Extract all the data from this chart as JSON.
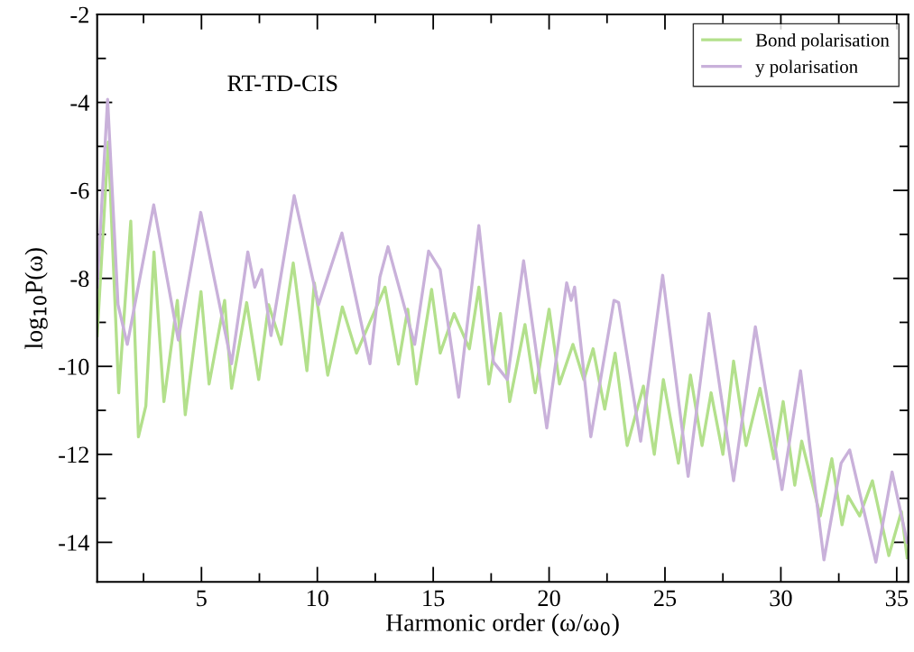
{
  "chart_data": {
    "type": "line",
    "xlabel": "Harmonic order (ω/ω$_{0}$)",
    "ylabel": "log$_{10}$P(ω)",
    "annotations": [
      "RT-TD-CIS"
    ],
    "xlim": [
      0.5,
      35.5
    ],
    "ylim": [
      -14.9,
      -2
    ],
    "xticks": [
      {
        "value": 2.5,
        "label": null
      },
      5,
      {
        "value": 7.5,
        "label": null
      },
      10,
      {
        "value": 12.5,
        "label": null
      },
      15,
      {
        "value": 17.5,
        "label": null
      },
      20,
      {
        "value": 22.5,
        "label": null
      },
      25,
      {
        "value": 27.5,
        "label": null
      },
      30,
      {
        "value": 32.5,
        "label": null
      },
      35
    ],
    "yticks": [
      -14,
      {
        "value": -13,
        "label": null
      },
      -12,
      {
        "value": -11,
        "label": null
      },
      -10,
      {
        "value": -9,
        "label": null
      },
      -8,
      {
        "value": -7,
        "label": null
      },
      -6,
      {
        "value": -5,
        "label": null
      },
      -4,
      {
        "value": -3,
        "label": null
      },
      -2
    ],
    "grid": false,
    "legend": "top right",
    "marker": "none",
    "line_style": "solid",
    "series": [
      {
        "name": "Bond polarisation",
        "color": "#b3e08c",
        "x": [
          0.5,
          0.98,
          1.43,
          1.95,
          2.28,
          2.6,
          2.95,
          3.38,
          3.96,
          4.3,
          4.98,
          5.33,
          6.0,
          6.3,
          6.95,
          7.47,
          7.9,
          8.44,
          8.96,
          9.55,
          9.87,
          10.45,
          11.08,
          11.69,
          12.92,
          13.5,
          13.9,
          14.28,
          14.93,
          15.3,
          15.9,
          16.56,
          16.97,
          17.4,
          17.9,
          18.3,
          18.96,
          19.4,
          20.0,
          20.45,
          21.03,
          21.5,
          21.9,
          22.4,
          22.85,
          23.37,
          24.07,
          24.54,
          24.93,
          25.58,
          26.1,
          26.6,
          26.99,
          27.5,
          27.96,
          28.5,
          29.1,
          29.7,
          30.1,
          30.6,
          30.9,
          31.7,
          32.2,
          32.64,
          32.9,
          33.4,
          33.95,
          34.66,
          35.2,
          35.45
        ],
        "values": [
          -9.3,
          -4.9,
          -10.6,
          -6.7,
          -11.6,
          -10.9,
          -7.4,
          -10.8,
          -8.5,
          -11.1,
          -8.3,
          -10.4,
          -8.5,
          -10.5,
          -8.55,
          -10.3,
          -8.6,
          -9.5,
          -7.65,
          -10.1,
          -8.1,
          -10.2,
          -8.65,
          -9.7,
          -8.2,
          -9.95,
          -8.7,
          -10.4,
          -8.25,
          -9.7,
          -8.8,
          -9.6,
          -8.2,
          -10.4,
          -8.8,
          -10.8,
          -9.05,
          -10.6,
          -8.7,
          -10.4,
          -9.5,
          -10.3,
          -9.6,
          -10.97,
          -9.7,
          -11.8,
          -10.45,
          -12.0,
          -10.3,
          -12.2,
          -10.2,
          -11.8,
          -10.6,
          -12.0,
          -9.88,
          -11.8,
          -10.5,
          -12.1,
          -10.8,
          -12.7,
          -11.7,
          -13.4,
          -12.1,
          -13.6,
          -12.95,
          -13.4,
          -12.6,
          -14.3,
          -13.3,
          -14.35
        ]
      },
      {
        "name": "y polarisation",
        "color": "#c9b1da",
        "x": [
          0.5,
          0.95,
          1.4,
          1.8,
          2.94,
          4.0,
          4.97,
          6.3,
          7.0,
          7.3,
          7.6,
          8.0,
          9.0,
          10.05,
          11.06,
          12.27,
          12.7,
          13.05,
          14.2,
          14.8,
          15.3,
          16.1,
          16.97,
          17.6,
          18.2,
          18.9,
          19.9,
          20.76,
          20.95,
          21.1,
          21.8,
          22.8,
          23.0,
          23.95,
          24.9,
          26.0,
          26.9,
          27.96,
          28.9,
          30.05,
          30.85,
          31.86,
          32.6,
          32.97,
          34.1,
          34.8,
          35.45
        ],
        "values": [
          -8.2,
          -3.93,
          -8.6,
          -9.5,
          -6.33,
          -9.4,
          -6.5,
          -9.94,
          -7.4,
          -8.2,
          -7.8,
          -9.3,
          -6.12,
          -8.6,
          -6.97,
          -9.94,
          -7.97,
          -7.28,
          -9.5,
          -7.38,
          -7.8,
          -10.7,
          -6.8,
          -9.9,
          -10.3,
          -7.6,
          -11.4,
          -8.1,
          -8.5,
          -8.2,
          -11.6,
          -8.5,
          -8.55,
          -11.7,
          -7.93,
          -12.5,
          -8.8,
          -12.6,
          -9.1,
          -12.8,
          -10.1,
          -14.4,
          -12.2,
          -11.9,
          -14.45,
          -12.4,
          -14.0
        ]
      }
    ]
  }
}
